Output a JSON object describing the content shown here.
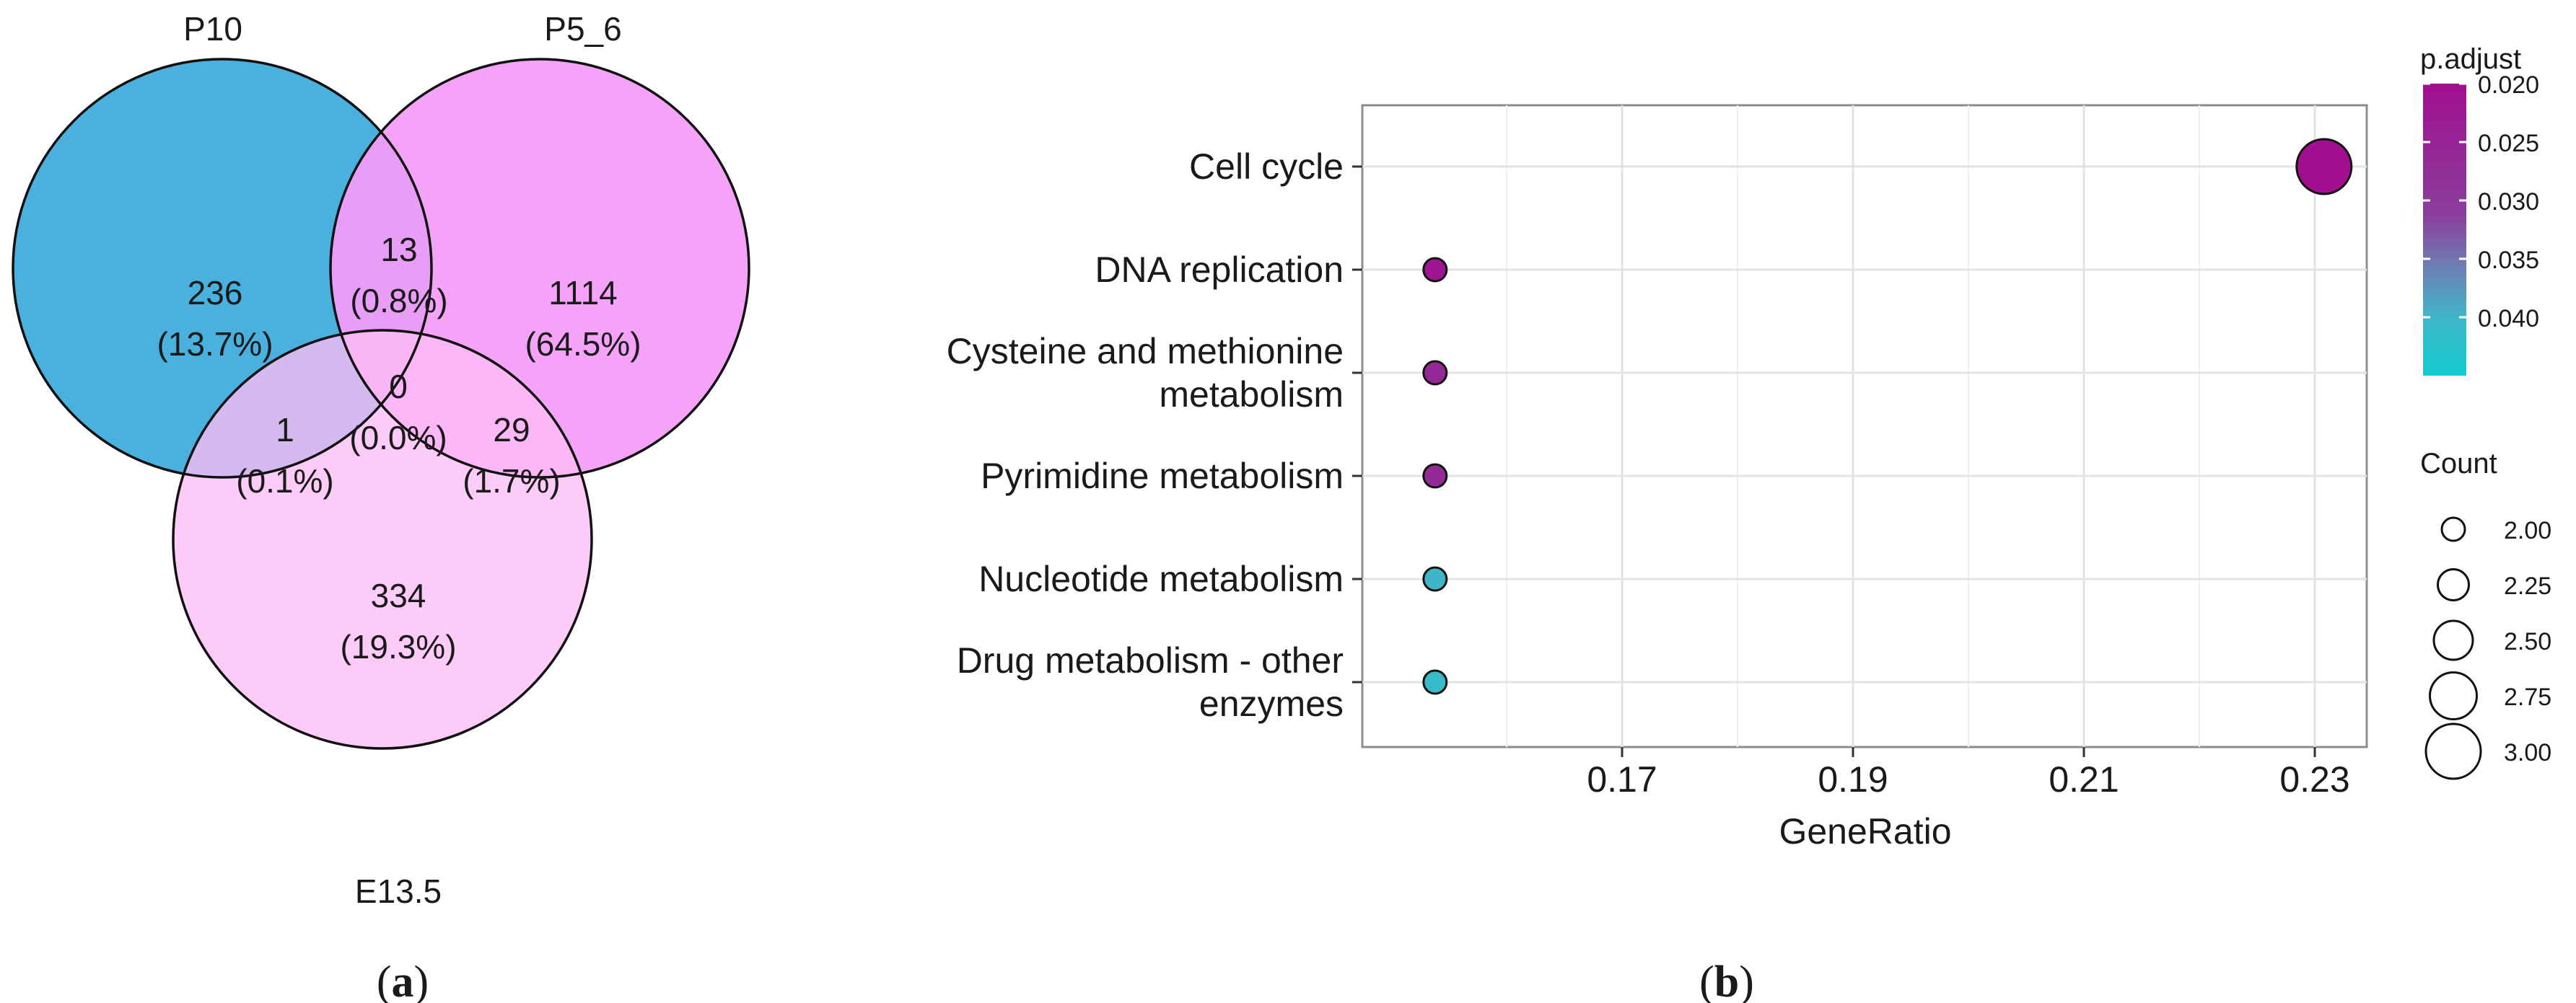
{
  "venn": {
    "set_labels": {
      "a": "P10",
      "b": "P5_6",
      "c": "E13.5"
    },
    "regions": {
      "a_only": {
        "count": "236",
        "pct": "(13.7%)"
      },
      "ab": {
        "count": "13",
        "pct": "(0.8%)"
      },
      "b_only": {
        "count": "1114",
        "pct": "(64.5%)"
      },
      "abc": {
        "count": "0",
        "pct": "(0.0%)"
      },
      "ac": {
        "count": "1",
        "pct": "(0.1%)"
      },
      "bc": {
        "count": "29",
        "pct": "(1.7%)"
      },
      "c_only": {
        "count": "334",
        "pct": "(19.3%)"
      }
    },
    "colors": {
      "a": "#4ab0de",
      "b": "#f49cf7",
      "c": "#fdbcf5"
    },
    "panel_label": {
      "prefix": "(",
      "letter": "a",
      "suffix": ")"
    }
  },
  "chart_data": {
    "type": "scatter",
    "subtype": "dotplot",
    "xlabel": "GeneRatio",
    "ylabel": "",
    "xlim": [
      0.1475,
      0.2345
    ],
    "x_ticks": [
      0.17,
      0.19,
      0.21,
      0.23
    ],
    "x_tick_labels": [
      "0.17",
      "0.19",
      "0.21",
      "0.23"
    ],
    "grid": true,
    "points": [
      {
        "label": [
          "Cell cycle"
        ],
        "x": 0.2308,
        "count": 3,
        "p_adjust": 0.02
      },
      {
        "label": [
          "DNA replication"
        ],
        "x": 0.1538,
        "count": 2,
        "p_adjust": 0.0215
      },
      {
        "label": [
          "Cysteine and methionine",
          "metabolism"
        ],
        "x": 0.1538,
        "count": 2,
        "p_adjust": 0.026
      },
      {
        "label": [
          "Pyrimidine metabolism"
        ],
        "x": 0.1538,
        "count": 2,
        "p_adjust": 0.0265
      },
      {
        "label": [
          "Nucleotide metabolism"
        ],
        "x": 0.1538,
        "count": 2,
        "p_adjust": 0.04
      },
      {
        "label": [
          "Drug metabolism - other",
          "enzymes"
        ],
        "x": 0.1538,
        "count": 2,
        "p_adjust": 0.041
      }
    ],
    "color_legend": {
      "title": "p.adjust",
      "range": [
        0.02,
        0.045
      ],
      "ticks": [
        0.02,
        0.025,
        0.03,
        0.035,
        0.04
      ],
      "tick_labels": [
        "0.020",
        "0.025",
        "0.030",
        "0.035",
        "0.040"
      ],
      "low_color": "#a10f8f",
      "mid_color": "#7b5aa8",
      "high_color": "#14cdd0",
      "placement": "right"
    },
    "size_legend": {
      "title": "Count",
      "values": [
        2.0,
        2.25,
        2.5,
        2.75,
        3.0
      ],
      "labels": [
        "2.00",
        "2.25",
        "2.50",
        "2.75",
        "3.00"
      ],
      "placement": "right"
    },
    "panel_label": {
      "prefix": "(",
      "letter": "b",
      "suffix": ")"
    }
  }
}
